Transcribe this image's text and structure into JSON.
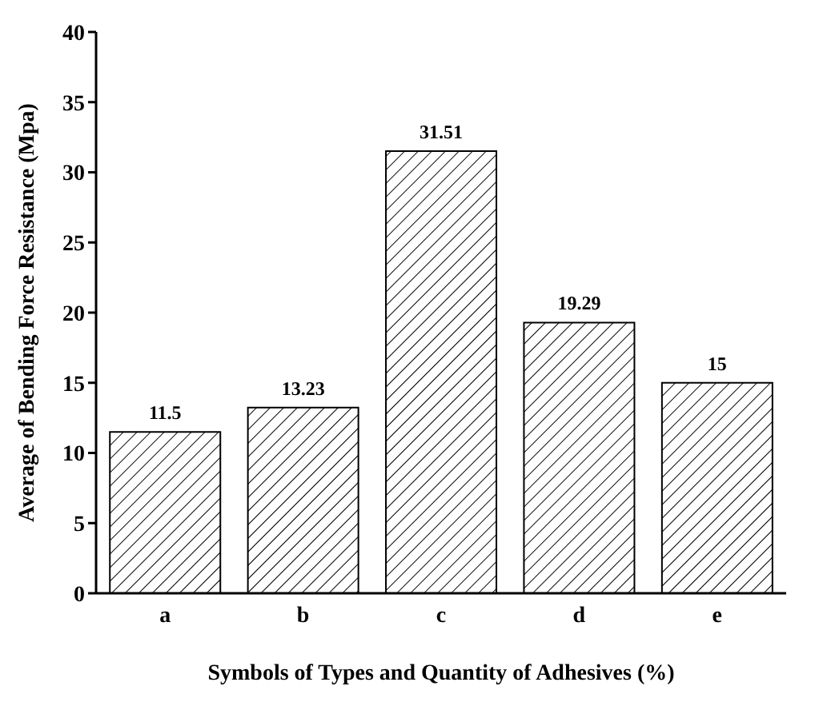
{
  "chart_data": {
    "type": "bar",
    "xlabel": "Symbols of Types and Quantity of Adhesives (%)",
    "ylabel": "Average of Bending Force Resistance (Mpa)",
    "categories": [
      "a",
      "b",
      "c",
      "d",
      "e"
    ],
    "values": [
      11.5,
      13.23,
      31.51,
      19.29,
      15
    ],
    "color": "#000000",
    "ylim": [
      0,
      40
    ],
    "yticks": [
      0,
      5,
      10,
      15,
      20,
      25,
      30,
      35,
      40
    ],
    "data_labels": true,
    "grid": false,
    "legend": false
  }
}
